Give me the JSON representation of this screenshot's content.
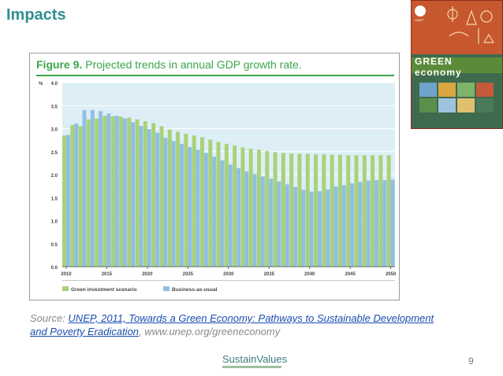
{
  "slide": {
    "title": "Impacts",
    "page_number": "9",
    "logo_text": "SustainValues"
  },
  "figure": {
    "label": "Figure 9.",
    "caption": "Projected trends in annual GDP growth rate.",
    "bar_colors": {
      "green": "#a9d17a",
      "blue": "#8fc0e2"
    }
  },
  "source": {
    "prefix": "Source: ",
    "link_text_1": "UNEP, 2011, Towards a Green Economy: Pathways to Sustainable Development",
    "link_text_2": "and Poverty Eradication",
    "suffix": ",  www.unep.org/greeneconomy"
  },
  "cover": {
    "title": "GREEN economy",
    "logo_label": "UNEP"
  },
  "chart_data": {
    "type": "bar",
    "ylabel": "%",
    "ylim": [
      0,
      4.0
    ],
    "yticks": [
      "0.0",
      "0.5",
      "1.0",
      "1.5",
      "2.0",
      "2.5",
      "3.0",
      "3.5",
      "4.0"
    ],
    "xtick_labels": [
      "2010",
      "2015",
      "2020",
      "2025",
      "2030",
      "2035",
      "2040",
      "2045",
      "2050"
    ],
    "categories": [
      2010,
      2011,
      2012,
      2013,
      2014,
      2015,
      2016,
      2017,
      2018,
      2019,
      2020,
      2021,
      2022,
      2023,
      2024,
      2025,
      2026,
      2027,
      2028,
      2029,
      2030,
      2031,
      2032,
      2033,
      2034,
      2035,
      2036,
      2037,
      2038,
      2039,
      2040,
      2041,
      2042,
      2043,
      2044,
      2045,
      2046,
      2047,
      2048,
      2049,
      2050
    ],
    "grid": true,
    "legend_position": "bottom",
    "series": [
      {
        "name": "Green investment scenario",
        "color": "#a9d17a",
        "values": [
          2.85,
          3.08,
          3.05,
          3.2,
          3.22,
          3.28,
          3.27,
          3.26,
          3.24,
          3.2,
          3.16,
          3.12,
          3.05,
          2.98,
          2.93,
          2.89,
          2.85,
          2.81,
          2.76,
          2.71,
          2.67,
          2.63,
          2.59,
          2.56,
          2.54,
          2.51,
          2.49,
          2.47,
          2.46,
          2.45,
          2.45,
          2.44,
          2.44,
          2.43,
          2.43,
          2.42,
          2.42,
          2.42,
          2.42,
          2.42,
          2.42
        ]
      },
      {
        "name": "Business-as-usual",
        "color": "#8fc0e2",
        "values": [
          2.86,
          3.11,
          3.4,
          3.4,
          3.38,
          3.33,
          3.28,
          3.22,
          3.14,
          3.06,
          2.99,
          2.91,
          2.8,
          2.73,
          2.67,
          2.6,
          2.54,
          2.47,
          2.39,
          2.31,
          2.22,
          2.14,
          2.07,
          2.01,
          1.96,
          1.91,
          1.85,
          1.79,
          1.73,
          1.67,
          1.63,
          1.64,
          1.68,
          1.74,
          1.77,
          1.81,
          1.84,
          1.87,
          1.88,
          1.88,
          1.89
        ]
      }
    ]
  }
}
